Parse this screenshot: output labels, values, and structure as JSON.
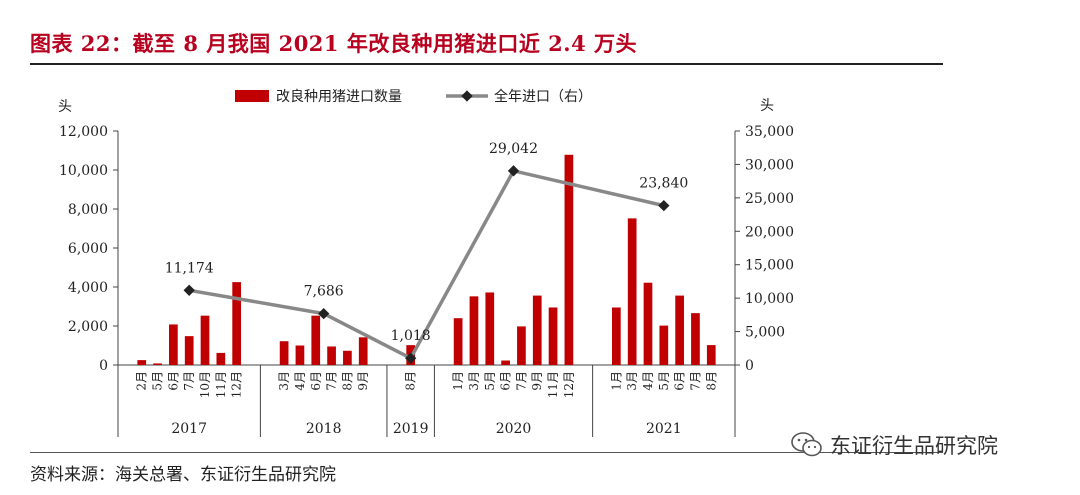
{
  "title": "图表 22：截至 8 月我国 2021 年改良种用猪进口近 2.4 万头",
  "source": "资料来源：海关总署、东证衍生品研究院",
  "watermark": "东证衍生品研究院",
  "colors": {
    "bar": "#c00000",
    "line": "#888888",
    "marker": "#222222",
    "title": "#b8001f"
  },
  "chart_data": {
    "type": "bar",
    "left_axis": {
      "unit": "头",
      "min": 0,
      "max": 12000,
      "step": 2000,
      "ticks": [
        "0",
        "2,000",
        "4,000",
        "6,000",
        "8,000",
        "10,000",
        "12,000"
      ]
    },
    "right_axis": {
      "unit": "头",
      "min": 0,
      "max": 35000,
      "step": 5000,
      "ticks": [
        "0",
        "5,000",
        "10,000",
        "15,000",
        "20,000",
        "25,000",
        "30,000",
        "35,000"
      ]
    },
    "legend": {
      "bar": "改良种用猪进口数量",
      "line": "全年进口（右）",
      "placement": "top-center"
    },
    "years": [
      {
        "year": "2017",
        "months": [
          "2月",
          "5月",
          "6月",
          "7月",
          "10月",
          "11月",
          "12月"
        ],
        "values": [
          250,
          80,
          2080,
          1480,
          2530,
          620,
          4250
        ],
        "annual": 11174,
        "annual_label": "11,174"
      },
      {
        "year": "2018",
        "months": [
          "3月",
          "4月",
          "6月",
          "7月",
          "8月",
          "9月"
        ],
        "values": [
          1220,
          1000,
          2530,
          950,
          730,
          1420
        ],
        "annual": 7686,
        "annual_label": "7,686"
      },
      {
        "year": "2019",
        "months": [
          "8月"
        ],
        "values": [
          1018
        ],
        "annual": 1018,
        "annual_label": "1,018"
      },
      {
        "year": "2020",
        "months": [
          "1月",
          "3月",
          "5月",
          "6月",
          "7月",
          "9月",
          "11月",
          "12月"
        ],
        "values": [
          2400,
          3520,
          3720,
          230,
          1980,
          3560,
          2950,
          10780
        ],
        "annual": 29042,
        "annual_label": "29,042"
      },
      {
        "year": "2021",
        "months": [
          "1月",
          "3月",
          "4月",
          "5月",
          "6月",
          "7月",
          "8月"
        ],
        "values": [
          2950,
          7520,
          4220,
          2020,
          3560,
          2660,
          1020
        ],
        "annual": 23840,
        "annual_label": "23,840"
      }
    ]
  }
}
